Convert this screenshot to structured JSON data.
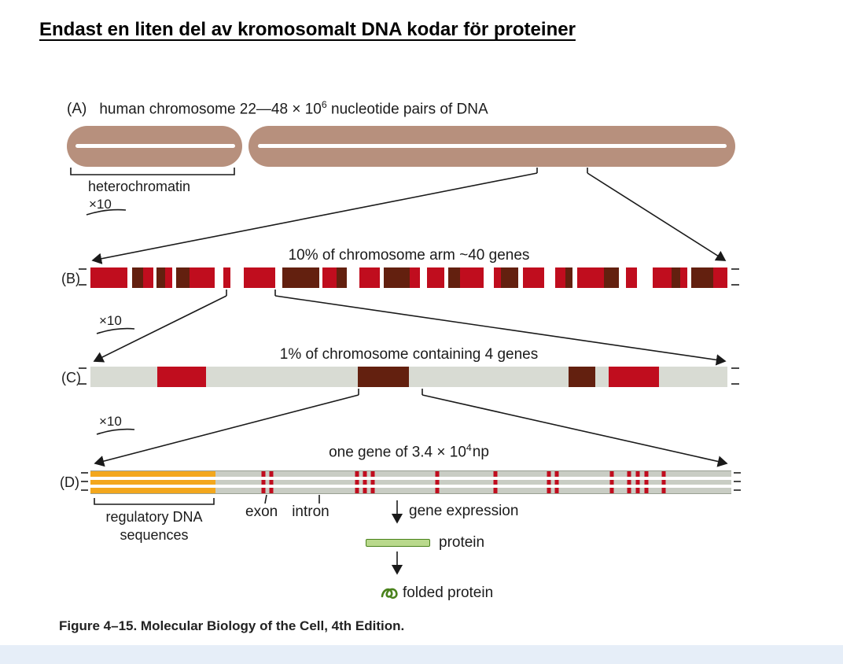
{
  "page": {
    "title": "Endast en liten del av kromosomalt DNA kodar för proteiner",
    "magnify": "×10",
    "caption": "Figure 4–15. Molecular Biology of the Cell, 4th Edition."
  },
  "colors": {
    "chromosome_fill": "#b7907d",
    "red": "#c00d1e",
    "dark": "#63200f",
    "bar_gray": "#d8dbd3",
    "stripe_gray": "#c9cdc4",
    "orange": "#f3a71d",
    "protein_fill": "#b9d98c",
    "protein_stroke": "#4a821c",
    "line": "#1a1a1a"
  },
  "panelA": {
    "label": "(A)",
    "title_prefix": "human chromosome 22—48 × 10",
    "title_sup": "6",
    "title_suffix": " nucleotide pairs of DNA",
    "bracket_label": "heterochromatin"
  },
  "panelB": {
    "label": "(B)",
    "title": "10% of chromosome arm ~40 genes",
    "segments": [
      [
        "red",
        26
      ],
      [
        "white",
        3
      ],
      [
        "dark",
        8
      ],
      [
        "red",
        7
      ],
      [
        "white",
        2
      ],
      [
        "dark",
        6
      ],
      [
        "red",
        5
      ],
      [
        "white",
        3
      ],
      [
        "dark",
        9
      ],
      [
        "red",
        18
      ],
      [
        "white",
        6
      ],
      [
        "red",
        5
      ],
      [
        "white",
        9
      ],
      [
        "red",
        22
      ],
      [
        "white",
        5
      ],
      [
        "dark",
        26
      ],
      [
        "white",
        2
      ],
      [
        "red",
        10
      ],
      [
        "dark",
        7
      ],
      [
        "white",
        9
      ],
      [
        "red",
        14
      ],
      [
        "white",
        3
      ],
      [
        "dark",
        18
      ],
      [
        "red",
        7
      ],
      [
        "white",
        5
      ],
      [
        "red",
        12
      ],
      [
        "white",
        3
      ],
      [
        "dark",
        8
      ],
      [
        "red",
        17
      ],
      [
        "white",
        7
      ],
      [
        "red",
        5
      ],
      [
        "dark",
        12
      ],
      [
        "white",
        3
      ],
      [
        "red",
        15
      ],
      [
        "white",
        8
      ],
      [
        "red",
        7
      ],
      [
        "dark",
        5
      ],
      [
        "white",
        3
      ],
      [
        "red",
        19
      ],
      [
        "dark",
        10
      ],
      [
        "white",
        5
      ],
      [
        "red",
        8
      ],
      [
        "white",
        11
      ],
      [
        "red",
        13
      ],
      [
        "dark",
        6
      ],
      [
        "red",
        5
      ],
      [
        "white",
        3
      ],
      [
        "dark",
        15
      ],
      [
        "red",
        10
      ]
    ]
  },
  "panelC": {
    "label": "(C)",
    "title": "1% of chromosome containing 4 genes",
    "blocks": [
      {
        "color": "red",
        "x": 10.5,
        "w": 7.7
      },
      {
        "color": "dark",
        "x": 42.0,
        "w": 8.0
      },
      {
        "color": "dark",
        "x": 75.0,
        "w": 4.3
      },
      {
        "color": "red",
        "x": 81.3,
        "w": 8.0
      }
    ]
  },
  "panelD": {
    "label": "(D)",
    "title_prefix": "one gene of 3.4 × 10",
    "title_sup": "4",
    "title_suffix": "np",
    "regulatory_width_pct": 19.5,
    "exon_marks_pct": [
      27.0,
      28.2,
      41.6,
      42.8,
      44.0,
      54.1,
      63.2,
      71.5,
      72.7,
      81.3,
      84.0,
      85.4,
      86.8,
      89.5
    ],
    "regulatory_label_line1": "regulatory DNA",
    "regulatory_label_line2": "sequences",
    "exon_label": "exon",
    "intron_label": "intron",
    "gene_expression_label": "gene expression",
    "protein_label": "protein",
    "folded_protein_label": "folded protein"
  }
}
